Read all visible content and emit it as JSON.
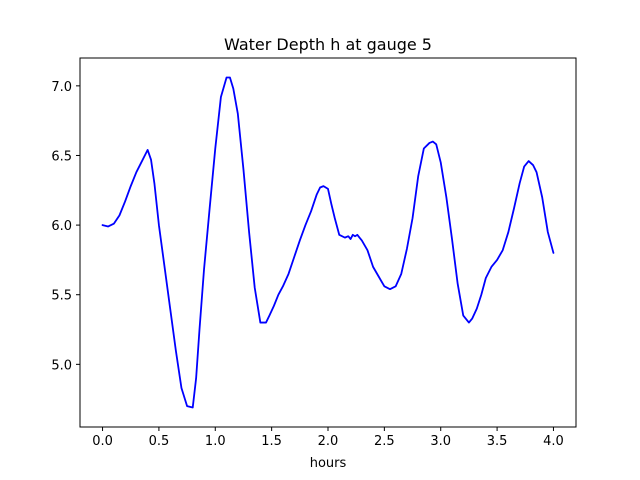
{
  "chart_data": {
    "type": "line",
    "title": "Water Depth h at gauge 5",
    "xlabel": "hours",
    "ylabel": "",
    "xlim": [
      -0.2,
      4.2
    ],
    "ylim": [
      4.55,
      7.2
    ],
    "grid": false,
    "x_ticks": [
      "0.0",
      "0.5",
      "1.0",
      "1.5",
      "2.0",
      "2.5",
      "3.0",
      "3.5",
      "4.0"
    ],
    "y_ticks": [
      "5.0",
      "5.5",
      "6.0",
      "6.5",
      "7.0"
    ],
    "series": [
      {
        "color": "#0000ff",
        "x": [
          0.0,
          0.05,
          0.1,
          0.15,
          0.2,
          0.25,
          0.3,
          0.35,
          0.4,
          0.43,
          0.46,
          0.5,
          0.55,
          0.6,
          0.65,
          0.7,
          0.75,
          0.8,
          0.83,
          0.86,
          0.9,
          0.95,
          1.0,
          1.05,
          1.1,
          1.13,
          1.16,
          1.2,
          1.25,
          1.3,
          1.35,
          1.4,
          1.45,
          1.48,
          1.52,
          1.56,
          1.6,
          1.65,
          1.7,
          1.75,
          1.8,
          1.85,
          1.9,
          1.93,
          1.96,
          2.0,
          2.03,
          2.06,
          2.1,
          2.15,
          2.18,
          2.2,
          2.22,
          2.24,
          2.26,
          2.28,
          2.3,
          2.35,
          2.4,
          2.45,
          2.5,
          2.55,
          2.6,
          2.65,
          2.7,
          2.75,
          2.8,
          2.85,
          2.9,
          2.93,
          2.96,
          3.0,
          3.05,
          3.1,
          3.15,
          3.2,
          3.25,
          3.28,
          3.32,
          3.36,
          3.4,
          3.45,
          3.5,
          3.55,
          3.6,
          3.65,
          3.7,
          3.74,
          3.78,
          3.82,
          3.85,
          3.9,
          3.95,
          4.0
        ],
        "y": [
          6.0,
          5.99,
          6.01,
          6.07,
          6.17,
          6.28,
          6.38,
          6.46,
          6.54,
          6.47,
          6.3,
          6.0,
          5.7,
          5.4,
          5.1,
          4.83,
          4.7,
          4.69,
          4.9,
          5.25,
          5.68,
          6.12,
          6.55,
          6.92,
          7.06,
          7.06,
          6.98,
          6.8,
          6.4,
          5.95,
          5.55,
          5.3,
          5.3,
          5.35,
          5.42,
          5.5,
          5.56,
          5.65,
          5.77,
          5.89,
          6.0,
          6.1,
          6.22,
          6.27,
          6.28,
          6.26,
          6.15,
          6.05,
          5.93,
          5.91,
          5.92,
          5.9,
          5.93,
          5.92,
          5.93,
          5.91,
          5.89,
          5.82,
          5.7,
          5.63,
          5.56,
          5.54,
          5.56,
          5.65,
          5.83,
          6.05,
          6.35,
          6.55,
          6.59,
          6.6,
          6.58,
          6.45,
          6.2,
          5.9,
          5.58,
          5.35,
          5.3,
          5.33,
          5.4,
          5.5,
          5.62,
          5.7,
          5.75,
          5.82,
          5.95,
          6.12,
          6.3,
          6.42,
          6.46,
          6.43,
          6.38,
          6.2,
          5.95,
          5.8
        ]
      }
    ]
  }
}
